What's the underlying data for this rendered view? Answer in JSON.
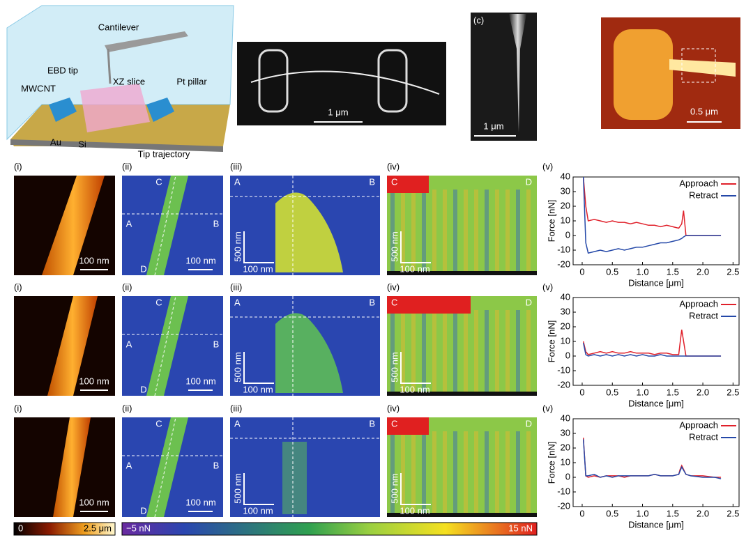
{
  "figure": {
    "schematic": {
      "labels": [
        "Cantilever",
        "EBD tip",
        "XZ slice",
        "MWCNT",
        "Pt pillar",
        "Au",
        "Si",
        "Tip trajectory"
      ]
    },
    "sem": {
      "scale": "1 μm"
    },
    "tip": {
      "label": "(c)",
      "scale": "1 μm"
    },
    "afm": {
      "scale": "0.5 μm"
    },
    "rows": [
      {
        "i": {
          "label": "(i)",
          "scale": "100 nm"
        },
        "ii": {
          "label": "(ii)",
          "corners": [
            "C",
            "A",
            "B",
            "D"
          ],
          "scale": "100 nm"
        },
        "iii": {
          "label": "(iii)",
          "corners": [
            "A",
            "B"
          ],
          "scale_v": "500 nm",
          "scale_h": "100 nm"
        },
        "iv": {
          "label": "(iv)",
          "corners": [
            "C",
            "D"
          ],
          "scale_v": "500 nm",
          "scale_h": "100 nm"
        }
      },
      {
        "i": {
          "label": "(i)",
          "scale": "100 nm"
        },
        "ii": {
          "label": "(ii)",
          "corners": [
            "C",
            "A",
            "B",
            "D"
          ],
          "scale": "100 nm"
        },
        "iii": {
          "label": "(iii)",
          "corners": [
            "A",
            "B"
          ],
          "scale_v": "500 nm",
          "scale_h": "100 nm"
        },
        "iv": {
          "label": "(iv)",
          "corners": [
            "C",
            "D"
          ],
          "scale_v": "500 nm",
          "scale_h": "100 nm"
        }
      },
      {
        "i": {
          "label": "(i)",
          "scale": "100 nm"
        },
        "ii": {
          "label": "(ii)",
          "corners": [
            "C",
            "A",
            "B",
            "D"
          ],
          "scale": "100 nm"
        },
        "iii": {
          "label": "(iii)",
          "corners": [
            "A",
            "B"
          ],
          "scale_v": "500 nm",
          "scale_h": "100 nm"
        },
        "iv": {
          "label": "(iv)",
          "corners": [
            "C",
            "D"
          ],
          "scale_v": "500 nm",
          "scale_h": "100 nm"
        }
      }
    ],
    "colorbars": [
      {
        "min": "0",
        "max": "2.5 μm"
      },
      {
        "min": "−5 nN",
        "max": "15 nN"
      }
    ]
  },
  "chart_data": [
    {
      "type": "line",
      "panel_label": "(v)",
      "x_label": "Distance [μm]",
      "y_label": "Force [nN]",
      "x": [
        0.02,
        0.06,
        0.1,
        0.2,
        0.3,
        0.4,
        0.5,
        0.6,
        0.7,
        0.8,
        0.9,
        1.0,
        1.1,
        1.2,
        1.3,
        1.4,
        1.5,
        1.6,
        1.65,
        1.68,
        1.72,
        1.8,
        2.0,
        2.2,
        2.3
      ],
      "series": [
        {
          "name": "Approach",
          "color": "#e0202a",
          "values": [
            40,
            20,
            10,
            11,
            10,
            9,
            10,
            9,
            9,
            8,
            9,
            8,
            7,
            7,
            6,
            7,
            6,
            5,
            8,
            17,
            0,
            0,
            0,
            0,
            0
          ]
        },
        {
          "name": "Retract",
          "color": "#2448a8",
          "values": [
            40,
            -5,
            -12,
            -11,
            -10,
            -11,
            -10,
            -9,
            -10,
            -9,
            -8,
            -8,
            -7,
            -6,
            -5,
            -5,
            -4,
            -3,
            -2,
            -1,
            0,
            0,
            0,
            0,
            0
          ]
        }
      ],
      "xlim": [
        -0.15,
        2.6
      ],
      "ylim": [
        -20,
        40
      ],
      "xticks": [
        0,
        0.5,
        {
          "value": 1,
          "label": "1.0"
        },
        1.5,
        {
          "value": 2,
          "label": "2.0"
        },
        2.5
      ],
      "yticks": [
        -20,
        -10,
        0,
        10,
        20,
        30,
        40
      ],
      "legend": "upper right"
    },
    {
      "type": "line",
      "panel_label": "(v)",
      "x_label": "Distance [μm]",
      "y_label": "Force [nN]",
      "x": [
        0.02,
        0.06,
        0.1,
        0.2,
        0.3,
        0.4,
        0.5,
        0.6,
        0.7,
        0.8,
        0.9,
        1.0,
        1.1,
        1.2,
        1.3,
        1.4,
        1.5,
        1.6,
        1.62,
        1.65,
        1.72,
        1.8,
        2.0,
        2.2,
        2.3
      ],
      "series": [
        {
          "name": "Approach",
          "color": "#e0202a",
          "values": [
            10,
            3,
            1,
            2,
            3,
            2,
            3,
            2,
            2,
            3,
            2,
            2,
            2,
            1,
            2,
            2,
            1,
            1,
            8,
            18,
            0,
            0,
            0,
            0,
            0
          ]
        },
        {
          "name": "Retract",
          "color": "#2448a8",
          "values": [
            9,
            1,
            0,
            1,
            0,
            1,
            0,
            1,
            0,
            1,
            0,
            1,
            0,
            0,
            1,
            0,
            0,
            0,
            0,
            0,
            0,
            0,
            0,
            0,
            0
          ]
        }
      ],
      "xlim": [
        -0.15,
        2.6
      ],
      "ylim": [
        -20,
        40
      ],
      "xticks": [
        0,
        0.5,
        {
          "value": 1,
          "label": "1.0"
        },
        1.5,
        {
          "value": 2,
          "label": "2.0"
        },
        2.5
      ],
      "yticks": [
        -20,
        -10,
        0,
        10,
        20,
        30,
        40
      ],
      "legend": "upper right"
    },
    {
      "type": "line",
      "panel_label": "(v)",
      "x_label": "Distance [μm]",
      "y_label": "Force [nN]",
      "x": [
        0.02,
        0.06,
        0.1,
        0.2,
        0.3,
        0.4,
        0.5,
        0.6,
        0.7,
        0.8,
        0.9,
        1.0,
        1.1,
        1.2,
        1.3,
        1.4,
        1.5,
        1.6,
        1.62,
        1.65,
        1.72,
        1.8,
        2.0,
        2.2,
        2.3
      ],
      "series": [
        {
          "name": "Approach",
          "color": "#e0202a",
          "values": [
            27,
            1,
            0,
            1,
            0,
            1,
            1,
            1,
            0,
            1,
            1,
            1,
            1,
            2,
            1,
            1,
            1,
            2,
            5,
            8,
            2,
            1,
            1,
            0,
            0
          ]
        },
        {
          "name": "Retract",
          "color": "#2448a8",
          "values": [
            26,
            1,
            1,
            2,
            0,
            1,
            0,
            1,
            1,
            1,
            1,
            1,
            1,
            2,
            1,
            1,
            1,
            2,
            4,
            7,
            2,
            1,
            0,
            0,
            -1
          ]
        }
      ],
      "xlim": [
        -0.15,
        2.6
      ],
      "ylim": [
        -20,
        40
      ],
      "xticks": [
        0,
        0.5,
        {
          "value": 1,
          "label": "1.0"
        },
        1.5,
        {
          "value": 2,
          "label": "2.0"
        },
        2.5
      ],
      "yticks": [
        -20,
        -10,
        0,
        10,
        20,
        30,
        40
      ],
      "legend": "upper right"
    }
  ]
}
